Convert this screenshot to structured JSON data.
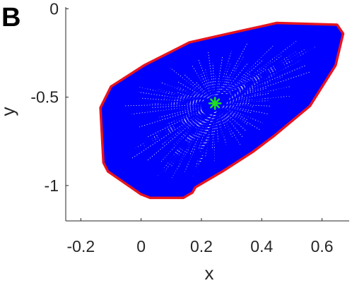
{
  "chart_data": {
    "type": "scatter",
    "panel_label": "B",
    "xlabel": "x",
    "ylabel": "y",
    "xlim": [
      -0.25,
      0.69
    ],
    "ylim": [
      -1.2,
      0.01
    ],
    "x_ticks": [
      -0.2,
      0,
      0.2,
      0.4,
      0.6
    ],
    "x_tick_labels": [
      "-0.2",
      "0",
      "0.2",
      "0.4",
      "0.6"
    ],
    "y_ticks": [
      0,
      -0.5,
      -1
    ],
    "y_tick_labels": [
      "0",
      "-0.5",
      "-1"
    ],
    "grid": false,
    "colors": {
      "trajectories": "#0000ff",
      "hull": "#e8141e",
      "center": "#22dd22",
      "axis": "#262626"
    },
    "center": {
      "x": 0.245,
      "y": -0.535
    },
    "hull": {
      "x": [
        0.67,
        0.645,
        0.56,
        0.44,
        0.37,
        0.27,
        0.18,
        0.17,
        0.14,
        0.03,
        0.0,
        -0.11,
        -0.125,
        -0.135,
        -0.1,
        0.01,
        0.16,
        0.29,
        0.45,
        0.65,
        0.67
      ],
      "y": [
        -0.14,
        -0.32,
        -0.55,
        -0.72,
        -0.81,
        -0.92,
        -1.01,
        -1.04,
        -1.07,
        -1.07,
        -1.05,
        -0.92,
        -0.87,
        -0.56,
        -0.44,
        -0.32,
        -0.19,
        -0.14,
        -0.08,
        -0.09,
        -0.14
      ]
    }
  }
}
